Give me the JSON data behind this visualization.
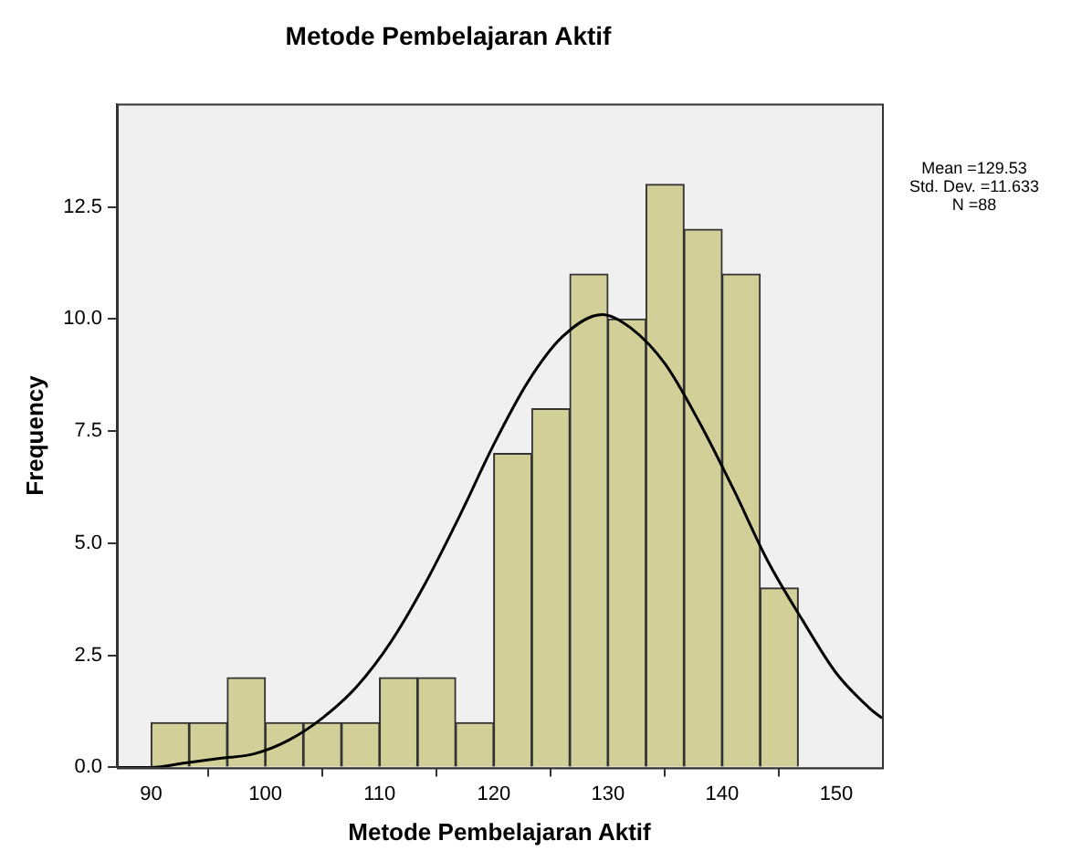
{
  "chart_data": {
    "type": "histogram",
    "title": "Metode Pembelajaran Aktif",
    "xlabel": "Metode Pembelajaran Aktif",
    "ylabel": "Frequency",
    "bins": [
      90,
      93.33,
      96.67,
      100,
      103.33,
      106.67,
      110,
      113.33,
      116.67,
      120,
      123.33,
      126.67,
      130,
      133.33,
      136.67,
      140,
      143.33,
      146.67
    ],
    "values": [
      1,
      1,
      2,
      1,
      1,
      1,
      2,
      2,
      1,
      7,
      8,
      11,
      10,
      13,
      12,
      11,
      4
    ],
    "color": "#d3cf98",
    "series": [
      {
        "type": "line",
        "color": "#000000",
        "marker": "none",
        "x": [
          87,
          90,
          93,
          96,
          99,
          102,
          105,
          108,
          111,
          114,
          117,
          120,
          123,
          126,
          129.5,
          132,
          135,
          138,
          141,
          144,
          147,
          150,
          153,
          154
        ],
        "values": [
          0.0,
          0.0,
          0.1,
          0.2,
          0.3,
          0.6,
          1.1,
          1.8,
          2.8,
          4.1,
          5.6,
          7.2,
          8.6,
          9.6,
          10.1,
          9.8,
          9.0,
          7.7,
          6.2,
          4.6,
          3.3,
          2.1,
          1.3,
          1.1
        ]
      }
    ],
    "xlim": [
      87,
      154
    ],
    "xticks": [
      90,
      100,
      110,
      120,
      130,
      140,
      150
    ],
    "ylim": [
      0,
      14.8
    ],
    "yticks": [
      {
        "value": 0,
        "label": "0.0"
      },
      {
        "value": 2.5,
        "label": "2.5"
      },
      {
        "value": 5,
        "label": "5.0"
      },
      {
        "value": 7.5,
        "label": "7.5"
      },
      {
        "value": 10,
        "label": "10.0"
      },
      {
        "value": 12.5,
        "label": "12.5"
      }
    ],
    "grid": false,
    "legend": false,
    "annotations": [
      "Mean =129.53",
      "Std. Dev. =11.633",
      "N =88"
    ]
  }
}
